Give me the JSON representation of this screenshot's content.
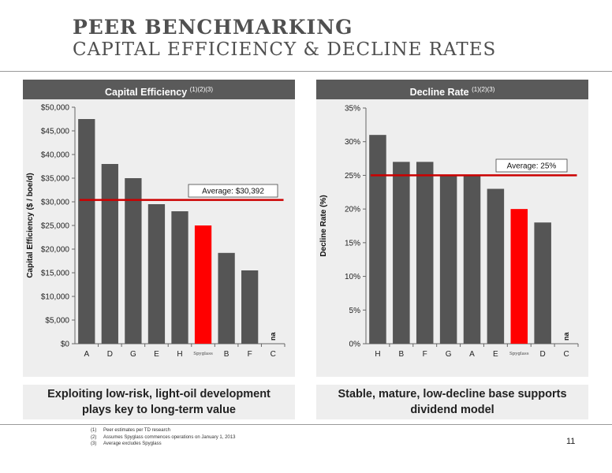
{
  "header": {
    "title": "PEER BENCHMARKING",
    "subtitle": "CAPITAL EFFICIENCY & DECLINE RATES"
  },
  "colors": {
    "bar": "#555555",
    "highlight": "#ff0000",
    "average_line": "#cc0000",
    "panel_bg": "#eeeeee",
    "panel_header": "#5a5a5a"
  },
  "chart_data": [
    {
      "type": "bar",
      "title": "Capital Efficiency",
      "title_notes": "(1)(2)(3)",
      "ylabel": "Capital Efficiency ($ / boe/d)",
      "categories": [
        "A",
        "D",
        "G",
        "E",
        "H",
        "Spyglass",
        "B",
        "F",
        "C"
      ],
      "values": [
        47500,
        38000,
        35000,
        29500,
        28000,
        25000,
        19200,
        15500,
        null
      ],
      "highlight_index": 5,
      "missing_label": "na",
      "ylim": [
        0,
        50000
      ],
      "yticks": [
        0,
        5000,
        10000,
        15000,
        20000,
        25000,
        30000,
        35000,
        40000,
        45000,
        50000
      ],
      "ytick_labels": [
        "$0",
        "$5,000",
        "$10,000",
        "$15,000",
        "$20,000",
        "$25,000",
        "$30,000",
        "$35,000",
        "$40,000",
        "$45,000",
        "$50,000"
      ],
      "average": 30392,
      "average_label": "Average: $30,392",
      "grid": false
    },
    {
      "type": "bar",
      "title": "Decline Rate",
      "title_notes": "(1)(2)(3)",
      "ylabel": "Decline Rate (%)",
      "categories": [
        "H",
        "B",
        "F",
        "G",
        "A",
        "E",
        "Spyglass",
        "D",
        "C"
      ],
      "values": [
        31,
        27,
        27,
        25,
        25,
        23,
        20,
        18,
        null
      ],
      "highlight_index": 6,
      "missing_label": "na",
      "ylim": [
        0,
        35
      ],
      "yticks": [
        0,
        5,
        10,
        15,
        20,
        25,
        30,
        35
      ],
      "ytick_labels": [
        "0%",
        "5%",
        "10%",
        "15%",
        "20%",
        "25%",
        "30%",
        "35%"
      ],
      "average": 25,
      "average_label": "Average: 25%",
      "grid": false
    }
  ],
  "captions": {
    "left": "Exploiting low-risk, light-oil development plays key to long-term value",
    "right": "Stable, mature, low-decline base supports dividend model"
  },
  "footnotes": [
    {
      "num": "(1)",
      "text": "Peer estimates per TD research"
    },
    {
      "num": "(2)",
      "text": "Assumes Spyglass commences operations on January 1, 2013"
    },
    {
      "num": "(3)",
      "text": "Average excludes Spyglass"
    }
  ],
  "page_number": "11"
}
